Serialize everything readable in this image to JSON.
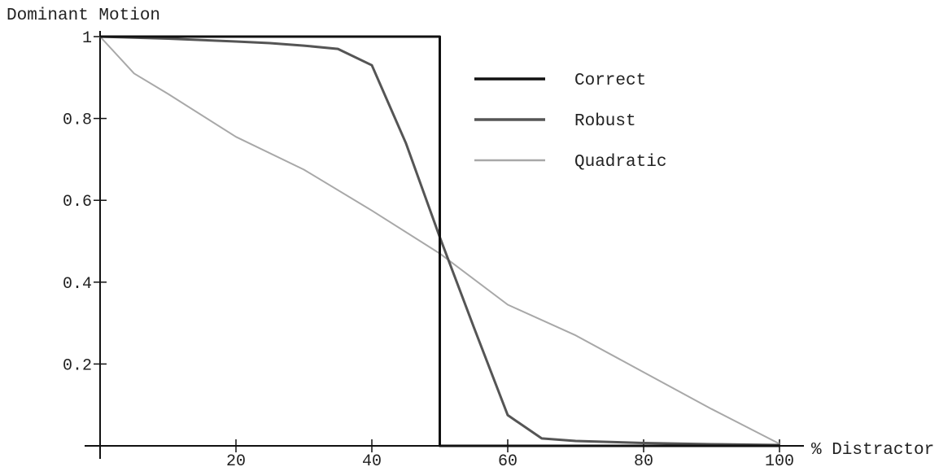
{
  "chart_data": {
    "type": "line",
    "ylabel": "Dominant Motion",
    "xlabel": "% Distractor",
    "xlim": [
      0,
      100
    ],
    "ylim": [
      0,
      1
    ],
    "x_ticks": [
      20,
      40,
      60,
      80,
      100
    ],
    "y_ticks": [
      0.2,
      0.4,
      0.6,
      0.8,
      1
    ],
    "y_tick_labels": [
      "0.2",
      "0.4",
      "0.6",
      "0.8",
      "1"
    ],
    "grid": false,
    "legend_position": "top-right",
    "series": [
      {
        "name": "Correct",
        "color": "#111111",
        "width": 3,
        "points": [
          [
            0,
            1
          ],
          [
            50,
            1
          ],
          [
            50,
            0
          ],
          [
            100,
            0
          ]
        ]
      },
      {
        "name": "Robust",
        "color": "#555555",
        "width": 3,
        "points": [
          [
            0,
            1
          ],
          [
            10,
            0.995
          ],
          [
            20,
            0.988
          ],
          [
            25,
            0.984
          ],
          [
            30,
            0.978
          ],
          [
            35,
            0.97
          ],
          [
            40,
            0.93
          ],
          [
            45,
            0.74
          ],
          [
            50,
            0.51
          ],
          [
            55,
            0.29
          ],
          [
            60,
            0.075
          ],
          [
            65,
            0.018
          ],
          [
            70,
            0.012
          ],
          [
            80,
            0.007
          ],
          [
            90,
            0.004
          ],
          [
            100,
            0.002
          ]
        ]
      },
      {
        "name": "Quadratic",
        "color": "#a8a8a8",
        "width": 2,
        "points": [
          [
            0,
            1
          ],
          [
            5,
            0.91
          ],
          [
            10,
            0.86
          ],
          [
            20,
            0.755
          ],
          [
            30,
            0.675
          ],
          [
            40,
            0.575
          ],
          [
            50,
            0.47
          ],
          [
            60,
            0.345
          ],
          [
            70,
            0.27
          ],
          [
            80,
            0.18
          ],
          [
            90,
            0.09
          ],
          [
            100,
            0.005
          ]
        ]
      }
    ]
  }
}
